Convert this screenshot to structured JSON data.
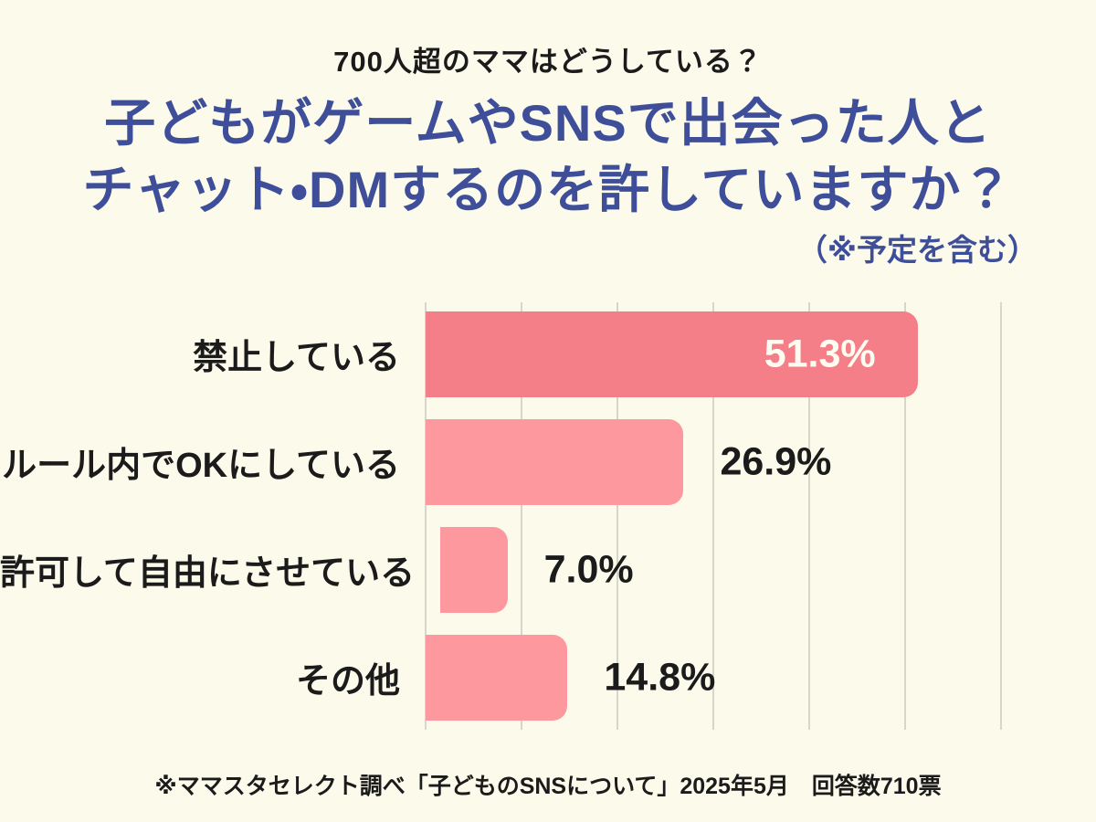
{
  "page": {
    "background_color": "#FCFAEB",
    "subtitle": "700人超のママはどうしている？",
    "title_line1": "子どもがゲームやSNSで出会った人と",
    "title_line2": "チャット・DMするのを許していますか？",
    "title_note": "（※予定を含む）",
    "title_color": "#3E4E99",
    "footer_note": "※ママスタセレクト調べ「子どものSNSについて」2025年5月　回答数710票"
  },
  "chart_data": {
    "type": "bar",
    "orientation": "horizontal",
    "title": "子どもがゲームやSNSで出会った人とチャット・DMするのを許していますか？（※予定を含む）",
    "categories": [
      "禁止している",
      "ルール内でOKにしている",
      "許可して自由にさせている",
      "その他"
    ],
    "values": [
      51.3,
      26.9,
      7.0,
      14.8
    ],
    "value_labels": [
      "51.3%",
      "26.9%",
      "7.0%",
      "14.8%"
    ],
    "xlim": [
      0,
      60
    ],
    "gridline_interval": 10,
    "grid": true,
    "legend": false,
    "bar_colors": [
      "#F57F88",
      "#FC989E",
      "#FC989E",
      "#FC989E"
    ],
    "value_label_inside": [
      true,
      false,
      false,
      false
    ],
    "gridline_color": "#D8D6CA",
    "value_text_colors": [
      "#FFFDF2",
      "#1B1B1B",
      "#1B1B1B",
      "#1B1B1B"
    ]
  }
}
